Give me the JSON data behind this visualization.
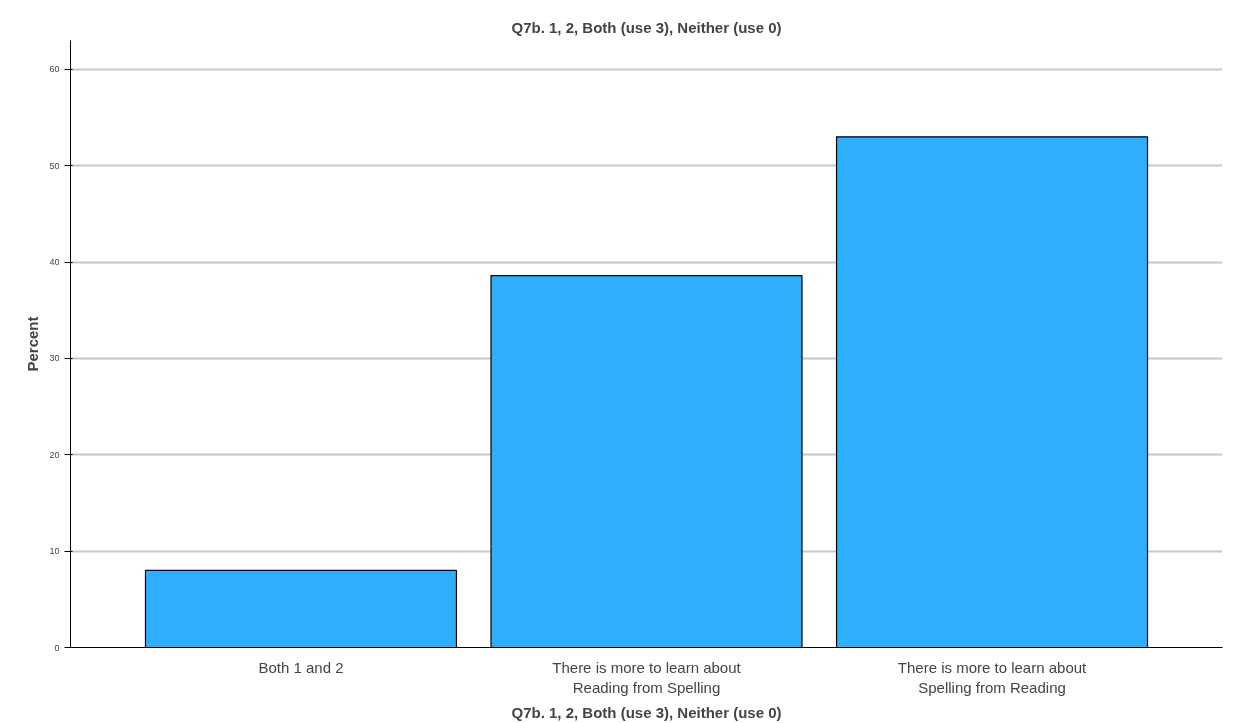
{
  "chart_data": {
    "type": "bar",
    "title": "Q7b. 1, 2, Both (use 3), Neither (use 0)",
    "xlabel": "Q7b. 1, 2, Both (use 3), Neither (use 0)",
    "ylabel": "Percent",
    "categories": [
      "Both 1 and 2",
      "There is more to learn about\nReading from Spelling",
      "There is more to learn about\nSpelling from Reading"
    ],
    "values": [
      8.0,
      38.6,
      53.0
    ],
    "color": "#2eaefd",
    "ylim": [
      0,
      63
    ],
    "yticks": [
      0,
      10,
      20,
      30,
      40,
      50,
      60
    ],
    "grid": "y"
  }
}
